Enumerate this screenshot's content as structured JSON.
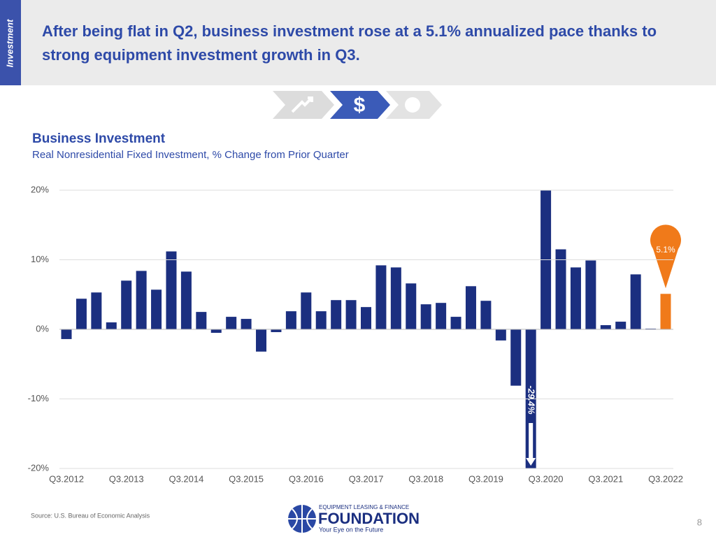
{
  "sidebar": "Investment",
  "header": {
    "title": "After being flat in Q2, business investment rose at a 5.1% annualized pace thanks to strong equipment investment growth in Q3."
  },
  "nav_icon": "$",
  "chart_data": {
    "type": "bar",
    "title": "Business Investment",
    "subtitle": "Real Nonresidential Fixed Investment, % Change from Prior Quarter",
    "categories": [
      "Q3.2012",
      null,
      null,
      null,
      "Q3.2013",
      null,
      null,
      null,
      "Q3.2014",
      null,
      null,
      null,
      "Q3.2015",
      null,
      null,
      null,
      "Q3.2016",
      null,
      null,
      null,
      "Q3.2017",
      null,
      null,
      null,
      "Q3.2018",
      null,
      null,
      null,
      "Q3.2019",
      null,
      null,
      null,
      "Q3.2020",
      null,
      null,
      null,
      "Q3.2021",
      null,
      null,
      null,
      "Q3.2022"
    ],
    "values": [
      -1.4,
      4.4,
      5.3,
      1.0,
      7.0,
      8.4,
      5.7,
      11.2,
      8.3,
      2.5,
      -0.5,
      1.8,
      1.5,
      -3.2,
      -0.4,
      2.6,
      5.3,
      2.6,
      4.2,
      4.2,
      3.2,
      9.2,
      8.9,
      6.6,
      3.6,
      3.8,
      1.8,
      6.2,
      4.1,
      -1.6,
      -8.1,
      -29.4,
      22,
      11.5,
      8.9,
      9.9,
      0.6,
      1.1,
      7.9,
      0.1,
      5.1
    ],
    "value_labels": [
      null,
      null,
      null,
      null,
      null,
      null,
      null,
      null,
      null,
      null,
      null,
      null,
      null,
      null,
      null,
      null,
      null,
      null,
      null,
      null,
      null,
      null,
      null,
      null,
      null,
      null,
      null,
      null,
      null,
      null,
      null,
      "-29.4%",
      null,
      null,
      null,
      null,
      null,
      null,
      null,
      null,
      "5.1%"
    ],
    "color": "#1b2f80",
    "highlight_color": "#f07a1a",
    "ylim": [
      -20,
      20
    ],
    "yticks": [
      {
        "value": -20,
        "label": "-20%"
      },
      {
        "value": -10,
        "label": "-10%"
      },
      {
        "value": 0,
        "label": "0%"
      },
      {
        "value": 10,
        "label": "10%"
      },
      {
        "value": 20,
        "label": "20%"
      }
    ],
    "grid": true,
    "source": "Source:  U.S. Bureau of Economic Analysis"
  },
  "logo": {
    "top": "EQUIPMENT LEASING & FINANCE",
    "name": "FOUNDATION",
    "tagline": "Your Eye on the Future"
  },
  "page_number": "8"
}
